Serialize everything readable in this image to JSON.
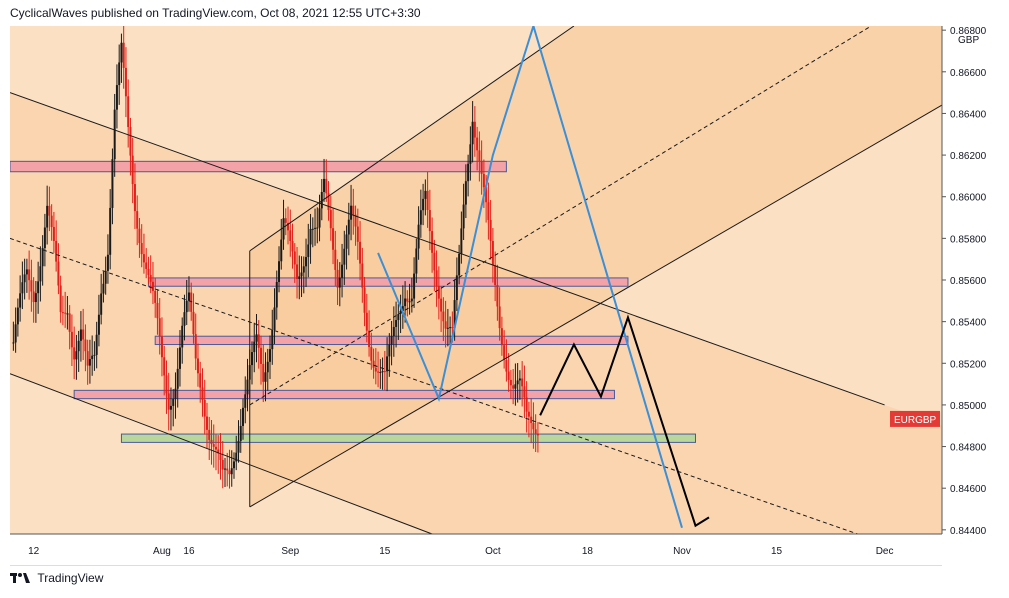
{
  "header": {
    "caption": "CyclicalWaves published on TradingView.com, Oct 08, 2021 12:55 UTC+3:30"
  },
  "footer": {
    "brand": "TradingView"
  },
  "chart_data": {
    "type": "candlestick",
    "symbol_label": "EURGBP",
    "currency_label": "GBP",
    "last_price": 0.85,
    "ylim": [
      0.8438,
      0.8682
    ],
    "y_ticks": [
      {
        "value": 0.868,
        "label": "0.86800"
      },
      {
        "value": 0.866,
        "label": "0.86600"
      },
      {
        "value": 0.864,
        "label": "0.86400"
      },
      {
        "value": 0.862,
        "label": "0.86200"
      },
      {
        "value": 0.86,
        "label": "0.86000"
      },
      {
        "value": 0.858,
        "label": "0.85800"
      },
      {
        "value": 0.856,
        "label": "0.85600"
      },
      {
        "value": 0.854,
        "label": "0.85400"
      },
      {
        "value": 0.852,
        "label": "0.85200"
      },
      {
        "value": 0.85,
        "label": "0.85000"
      },
      {
        "value": 0.848,
        "label": "0.84800"
      },
      {
        "value": 0.846,
        "label": "0.84600"
      },
      {
        "value": 0.844,
        "label": "0.84400"
      }
    ],
    "x_ticks": [
      {
        "day": 0,
        "label": "12"
      },
      {
        "day": 19,
        "label": "Aug"
      },
      {
        "day": 23,
        "label": "16"
      },
      {
        "day": 38,
        "label": "Sep"
      },
      {
        "day": 52,
        "label": "15"
      },
      {
        "day": 68,
        "label": "Oct"
      },
      {
        "day": 82,
        "label": "18"
      },
      {
        "day": 96,
        "label": "Nov"
      },
      {
        "day": 110,
        "label": "15"
      },
      {
        "day": 126,
        "label": "Dec"
      }
    ],
    "xlim": [
      -3.5,
      134.5
    ],
    "price_path": [
      [
        -3,
        0.853
      ],
      [
        -2,
        0.8545
      ],
      [
        -1,
        0.856
      ],
      [
        0,
        0.8555
      ],
      [
        1,
        0.8575
      ],
      [
        2,
        0.8595
      ],
      [
        3,
        0.857
      ],
      [
        4,
        0.854
      ],
      [
        5,
        0.855
      ],
      [
        6,
        0.853
      ],
      [
        7,
        0.8535
      ],
      [
        8,
        0.851
      ],
      [
        9,
        0.852
      ],
      [
        10,
        0.856
      ],
      [
        11,
        0.858
      ],
      [
        12,
        0.864
      ],
      [
        13,
        0.8665
      ],
      [
        14,
        0.863
      ],
      [
        15,
        0.86
      ],
      [
        16,
        0.858
      ],
      [
        17,
        0.856
      ],
      [
        18,
        0.854
      ],
      [
        19,
        0.852
      ],
      [
        20,
        0.8505
      ],
      [
        21,
        0.8515
      ],
      [
        22,
        0.8535
      ],
      [
        23,
        0.8545
      ],
      [
        24,
        0.852
      ],
      [
        25,
        0.851
      ],
      [
        26,
        0.849
      ],
      [
        27,
        0.8475
      ],
      [
        28,
        0.846
      ],
      [
        29,
        0.8465
      ],
      [
        30,
        0.8485
      ],
      [
        31,
        0.8505
      ],
      [
        32,
        0.8515
      ],
      [
        33,
        0.8525
      ],
      [
        34,
        0.851
      ],
      [
        35,
        0.8535
      ],
      [
        36,
        0.8565
      ],
      [
        37,
        0.8585
      ],
      [
        38,
        0.857
      ],
      [
        39,
        0.856
      ],
      [
        40,
        0.8575
      ],
      [
        41,
        0.859
      ],
      [
        42,
        0.858
      ],
      [
        43,
        0.86
      ],
      [
        44,
        0.8585
      ],
      [
        45,
        0.8565
      ],
      [
        46,
        0.858
      ],
      [
        47,
        0.859
      ],
      [
        48,
        0.857
      ],
      [
        49,
        0.8545
      ],
      [
        50,
        0.853
      ],
      [
        51,
        0.852
      ],
      [
        52,
        0.851
      ],
      [
        53,
        0.8525
      ],
      [
        54,
        0.8545
      ],
      [
        55,
        0.856
      ],
      [
        56,
        0.8555
      ],
      [
        57,
        0.858
      ],
      [
        58,
        0.8595
      ],
      [
        59,
        0.8575
      ],
      [
        60,
        0.856
      ],
      [
        61,
        0.854
      ],
      [
        62,
        0.853
      ],
      [
        63,
        0.8565
      ],
      [
        64,
        0.861
      ],
      [
        65,
        0.8645
      ],
      [
        66,
        0.862
      ],
      [
        67,
        0.859
      ],
      [
        68,
        0.856
      ],
      [
        69,
        0.854
      ],
      [
        70,
        0.8525
      ],
      [
        71,
        0.851
      ],
      [
        72,
        0.8505
      ],
      [
        73,
        0.849
      ],
      [
        74,
        0.8492
      ],
      [
        75,
        0.8495
      ]
    ],
    "zones": [
      {
        "name": "resistance-0.8616",
        "day_start": -3.5,
        "day_end": 70,
        "low": 0.8612,
        "high": 0.8617,
        "color": "#f3a3a8"
      },
      {
        "name": "resistance-0.8560",
        "day_start": 17,
        "day_end": 88,
        "low": 0.8557,
        "high": 0.8561,
        "color": "#f3a3a8"
      },
      {
        "name": "resistance-0.8532",
        "day_start": 18,
        "day_end": 88,
        "low": 0.8529,
        "high": 0.8533,
        "color": "#f3a3a8"
      },
      {
        "name": "resistance-0.8507",
        "day_start": 6,
        "day_end": 86,
        "low": 0.8503,
        "high": 0.8507,
        "color": "#f3a3a8"
      },
      {
        "name": "support-0.8485",
        "day_start": 13,
        "day_end": 98,
        "low": 0.8482,
        "high": 0.8486,
        "color": "#b9d79a"
      }
    ],
    "trendlines": [
      {
        "name": "descending-channel-top",
        "p1": [
          -3.5,
          0.865
        ],
        "p2": [
          126,
          0.85
        ],
        "style": "solid"
      },
      {
        "name": "descending-channel-mid",
        "p1": [
          -3.5,
          0.858
        ],
        "p2": [
          122,
          0.8438
        ],
        "style": "dashed"
      },
      {
        "name": "descending-channel-bottom",
        "p1": [
          -3.5,
          0.8515
        ],
        "p2": [
          59,
          0.8438
        ],
        "style": "solid"
      },
      {
        "name": "ascending-channel-top",
        "p1": [
          32,
          0.8574
        ],
        "p2": [
          80,
          0.8682
        ],
        "style": "solid"
      },
      {
        "name": "ascending-channel-mid",
        "p1": [
          32,
          0.85
        ],
        "p2": [
          124,
          0.8682
        ],
        "style": "dashed"
      },
      {
        "name": "ascending-channel-bottom",
        "p1": [
          32,
          0.8451
        ],
        "p2": [
          134.5,
          0.8644
        ],
        "style": "solid"
      },
      {
        "name": "ascending-channel-left-edge",
        "p1": [
          32,
          0.8451
        ],
        "p2": [
          32,
          0.8574
        ],
        "style": "solid"
      }
    ],
    "projections": [
      {
        "name": "blue-projection",
        "color": "#3b8fd6",
        "points": [
          [
            51,
            0.8573
          ],
          [
            60,
            0.8503
          ],
          [
            68,
            0.862
          ],
          [
            74,
            0.8682
          ],
          [
            96,
            0.8441
          ]
        ]
      },
      {
        "name": "black-projection",
        "color": "#000000",
        "points": [
          [
            75,
            0.8495
          ],
          [
            80,
            0.8529
          ],
          [
            84,
            0.8504
          ],
          [
            88,
            0.8542
          ],
          [
            98,
            0.8442
          ],
          [
            100,
            0.8446
          ]
        ]
      }
    ]
  }
}
